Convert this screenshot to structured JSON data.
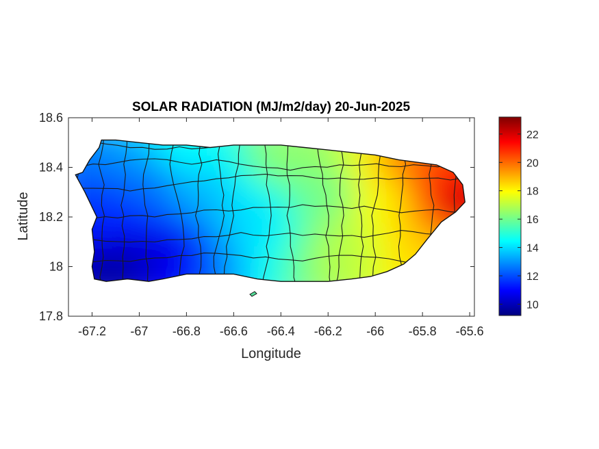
{
  "figure": {
    "title": "SOLAR RADIATION (MJ/m2/day) 20-Jun-2025",
    "xlabel": "Longitude",
    "ylabel": "Latitude"
  },
  "chart_data": {
    "type": "heatmap",
    "title": "SOLAR RADIATION (MJ/m2/day) 20-Jun-2025",
    "xlabel": "Longitude",
    "ylabel": "Latitude",
    "xlim": [
      -67.3,
      -65.58
    ],
    "ylim": [
      17.8,
      18.6
    ],
    "x_ticks": [
      -67.2,
      -67,
      -66.8,
      -66.6,
      -66.4,
      -66.2,
      -66,
      -65.8,
      -65.6
    ],
    "x_tick_labels": [
      "-67.2",
      "-67",
      "-66.8",
      "-66.6",
      "-66.4",
      "-66.2",
      "-66",
      "-65.8",
      "-65.6"
    ],
    "y_ticks": [
      17.8,
      18,
      18.2,
      18.4,
      18.6
    ],
    "y_tick_labels": [
      "17.8",
      "18",
      "18.2",
      "18.4",
      "18.6"
    ],
    "colorbar": {
      "range": [
        9.2,
        23.2
      ],
      "ticks": [
        10,
        12,
        14,
        16,
        18,
        20,
        22
      ],
      "tick_labels": [
        "10",
        "12",
        "14",
        "16",
        "18",
        "20",
        "22"
      ],
      "colormap": "jet",
      "colors": [
        "#00007f",
        "#0000ff",
        "#007fff",
        "#00ffff",
        "#7fff7f",
        "#ffff00",
        "#ff7f00",
        "#ff0000",
        "#7f0000"
      ]
    },
    "grid": false,
    "island_outline": [
      [
        -67.27,
        18.37
      ],
      [
        -67.24,
        18.38
      ],
      [
        -67.21,
        18.43
      ],
      [
        -67.17,
        18.48
      ],
      [
        -67.16,
        18.51
      ],
      [
        -67.1,
        18.51
      ],
      [
        -67.0,
        18.5
      ],
      [
        -66.9,
        18.49
      ],
      [
        -66.8,
        18.49
      ],
      [
        -66.7,
        18.48
      ],
      [
        -66.6,
        18.49
      ],
      [
        -66.5,
        18.49
      ],
      [
        -66.4,
        18.49
      ],
      [
        -66.3,
        18.48
      ],
      [
        -66.2,
        18.47
      ],
      [
        -66.1,
        18.46
      ],
      [
        -66.0,
        18.45
      ],
      [
        -65.9,
        18.43
      ],
      [
        -65.82,
        18.42
      ],
      [
        -65.74,
        18.41
      ],
      [
        -65.67,
        18.38
      ],
      [
        -65.63,
        18.33
      ],
      [
        -65.62,
        18.26
      ],
      [
        -65.66,
        18.22
      ],
      [
        -65.72,
        18.18
      ],
      [
        -65.78,
        18.11
      ],
      [
        -65.83,
        18.05
      ],
      [
        -65.88,
        18.01
      ],
      [
        -65.95,
        17.98
      ],
      [
        -66.02,
        17.96
      ],
      [
        -66.1,
        17.95
      ],
      [
        -66.2,
        17.94
      ],
      [
        -66.3,
        17.94
      ],
      [
        -66.4,
        17.94
      ],
      [
        -66.5,
        17.95
      ],
      [
        -66.6,
        17.97
      ],
      [
        -66.7,
        17.97
      ],
      [
        -66.8,
        17.97
      ],
      [
        -66.9,
        17.95
      ],
      [
        -66.96,
        17.94
      ],
      [
        -67.05,
        17.95
      ],
      [
        -67.14,
        17.94
      ],
      [
        -67.19,
        17.95
      ],
      [
        -67.2,
        18.0
      ],
      [
        -67.19,
        18.06
      ],
      [
        -67.2,
        18.15
      ],
      [
        -67.18,
        18.2
      ],
      [
        -67.23,
        18.3
      ],
      [
        -67.27,
        18.37
      ]
    ],
    "field_samples": [
      {
        "lon": -67.12,
        "lat": 17.98,
        "value": 9.5
      },
      {
        "lon": -67.05,
        "lat": 18.05,
        "value": 10.0
      },
      {
        "lon": -66.9,
        "lat": 18.08,
        "value": 10.5
      },
      {
        "lon": -67.1,
        "lat": 18.2,
        "value": 11.5
      },
      {
        "lon": -66.95,
        "lat": 18.32,
        "value": 12.5
      },
      {
        "lon": -66.75,
        "lat": 18.3,
        "value": 13.5
      },
      {
        "lon": -66.8,
        "lat": 18.46,
        "value": 14.5
      },
      {
        "lon": -66.5,
        "lat": 18.2,
        "value": 14.0
      },
      {
        "lon": -66.4,
        "lat": 18.45,
        "value": 16.5
      },
      {
        "lon": -66.2,
        "lat": 18.3,
        "value": 16.0
      },
      {
        "lon": -66.1,
        "lat": 18.05,
        "value": 17.0
      },
      {
        "lon": -65.95,
        "lat": 18.3,
        "value": 18.0
      },
      {
        "lon": -65.85,
        "lat": 18.38,
        "value": 20.0
      },
      {
        "lon": -65.72,
        "lat": 18.35,
        "value": 21.0
      },
      {
        "lon": -65.64,
        "lat": 18.27,
        "value": 22.5
      },
      {
        "lon": -65.85,
        "lat": 18.05,
        "value": 18.5
      }
    ]
  }
}
